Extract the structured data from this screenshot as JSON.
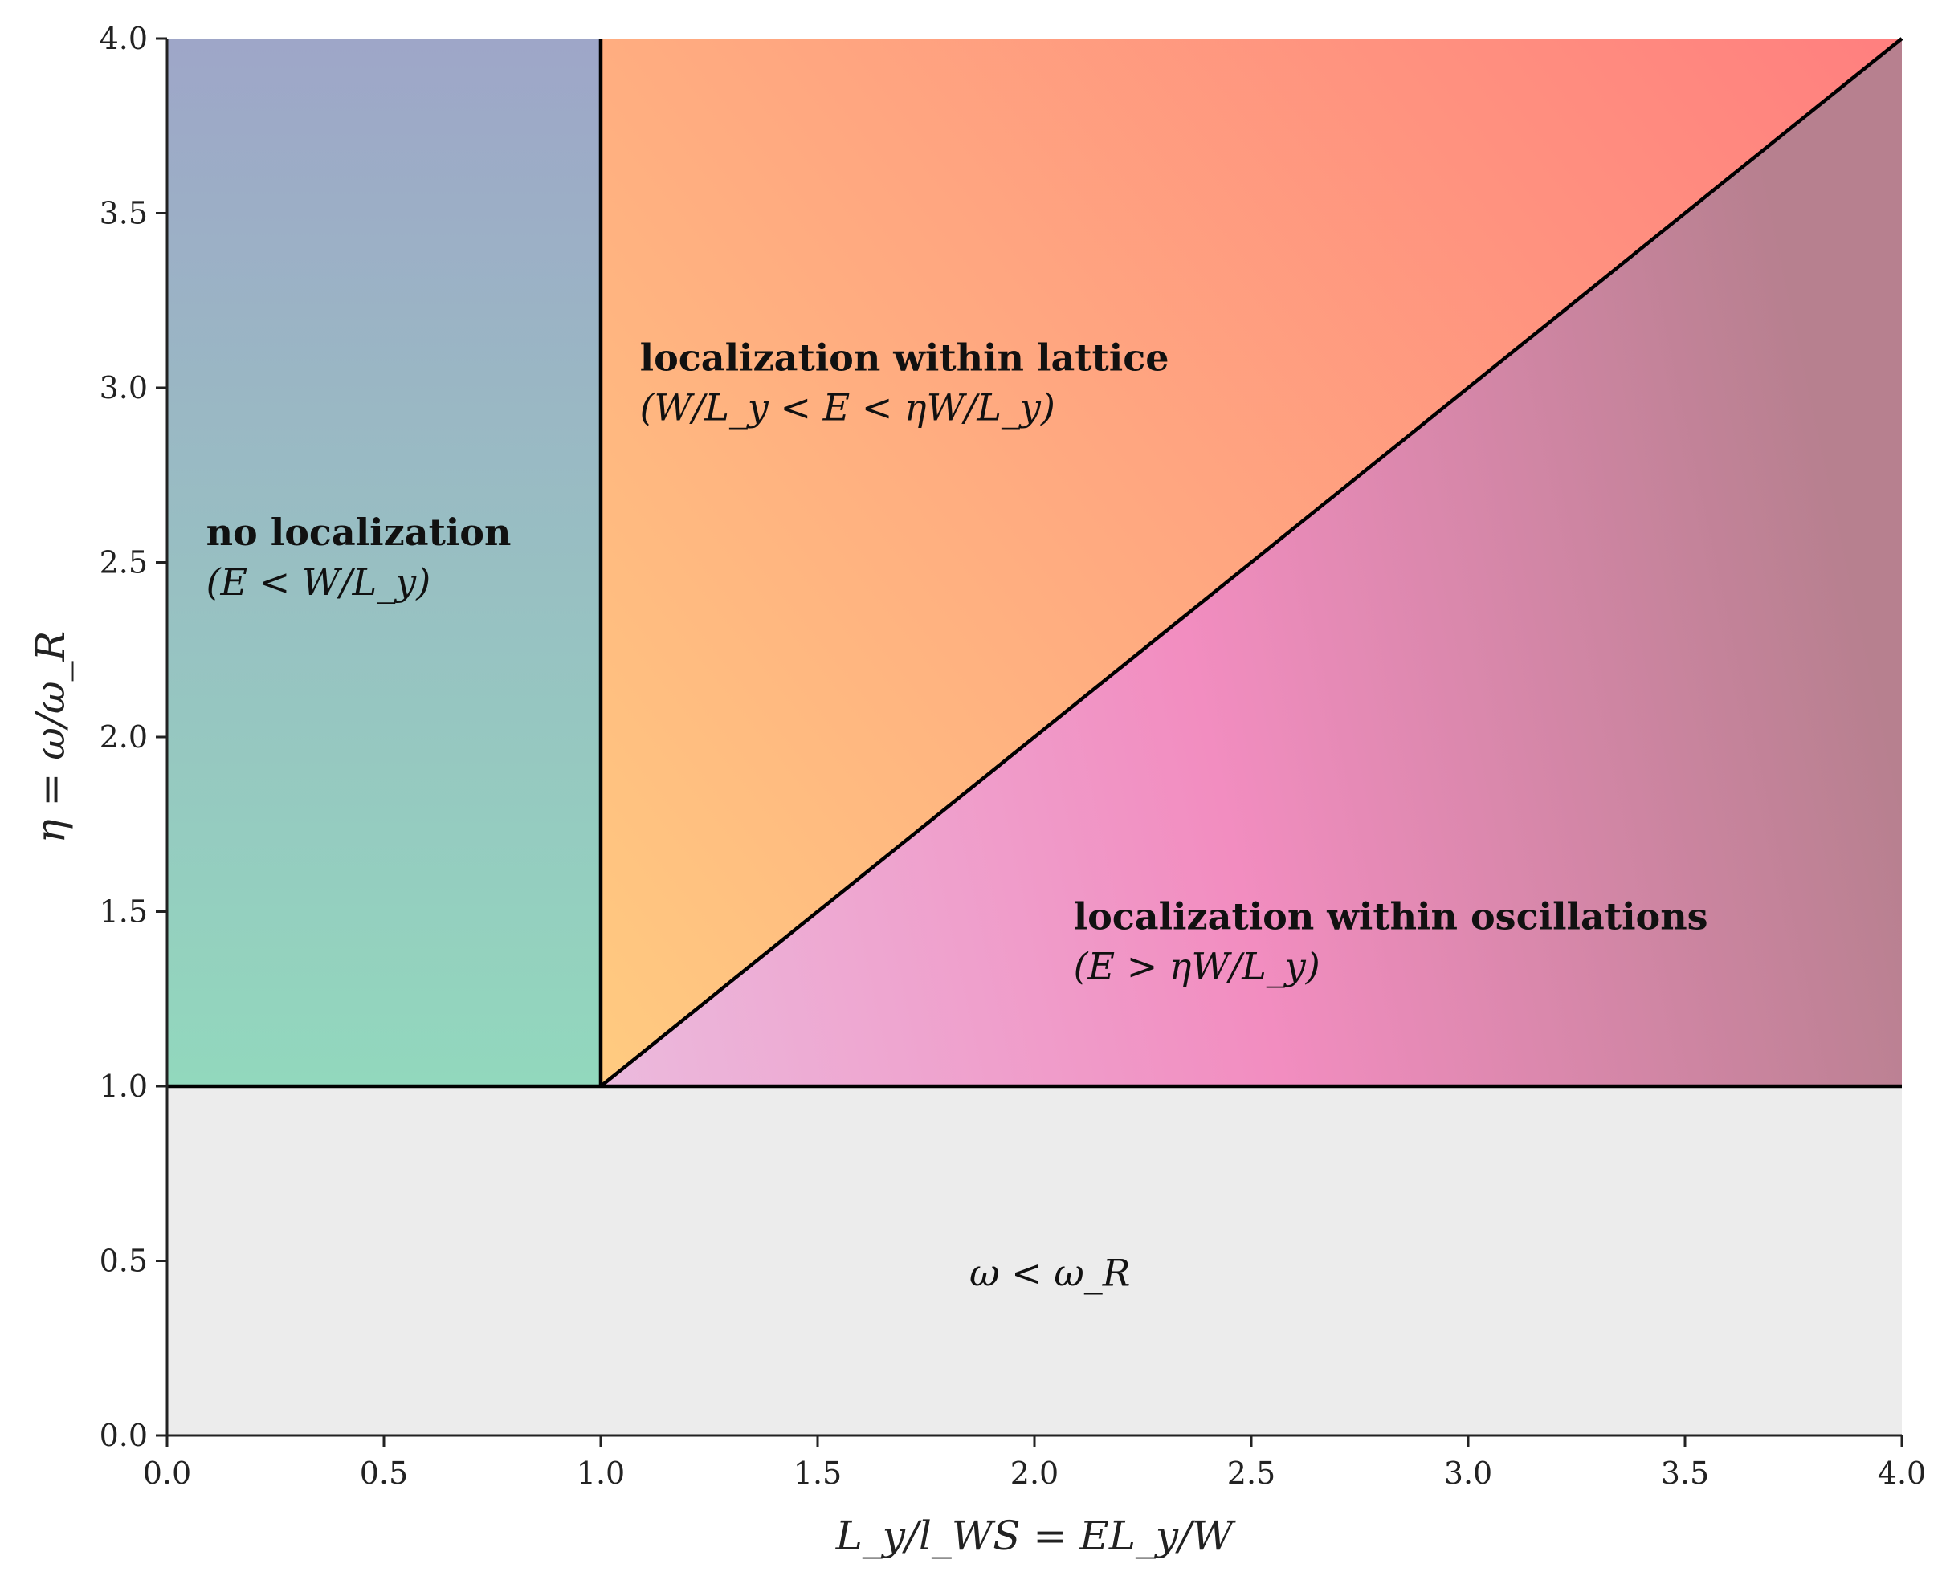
{
  "chart_data": {
    "type": "area",
    "title": "",
    "xlabel": "L_y/l_WS = EL_y/W",
    "ylabel": "η = ω/ω_R",
    "xlim": [
      0,
      4
    ],
    "ylim": [
      0,
      4
    ],
    "x_ticks": [
      0.0,
      0.5,
      1.0,
      1.5,
      2.0,
      2.5,
      3.0,
      3.5,
      4.0
    ],
    "y_ticks": [
      0.0,
      0.5,
      1.0,
      1.5,
      2.0,
      2.5,
      3.0,
      3.5,
      4.0
    ],
    "x_tick_labels": [
      "0.0",
      "0.5",
      "1.0",
      "1.5",
      "2.0",
      "2.5",
      "3.0",
      "3.5",
      "4.0"
    ],
    "y_tick_labels": [
      "0.0",
      "0.5",
      "1.0",
      "1.5",
      "2.0",
      "2.5",
      "3.0",
      "3.5",
      "4.0"
    ],
    "grid": false,
    "regions": [
      {
        "id": "below-resonance",
        "polygon": [
          [
            0,
            0
          ],
          [
            4,
            0
          ],
          [
            4,
            1
          ],
          [
            0,
            1
          ]
        ],
        "color": "#ececec"
      },
      {
        "id": "no-localization",
        "polygon": [
          [
            0,
            1
          ],
          [
            1,
            1
          ],
          [
            1,
            4
          ],
          [
            0,
            4
          ]
        ],
        "color_bottom": "#92d8bd",
        "color_top": "#9ea6c8"
      },
      {
        "id": "lattice",
        "polygon": [
          [
            1,
            1
          ],
          [
            4,
            4
          ],
          [
            1,
            4
          ]
        ],
        "color_low": "#ffcb80",
        "color_high": "#ff7f7f"
      },
      {
        "id": "oscillations",
        "polygon": [
          [
            1,
            1
          ],
          [
            4,
            1
          ],
          [
            4,
            4
          ]
        ],
        "color_low": "#ebbadd",
        "color_mid": "#f28dc0",
        "color_high": "#b7808f"
      }
    ],
    "boundaries": [
      {
        "id": "eta-one",
        "points": [
          [
            0,
            1
          ],
          [
            4,
            1
          ]
        ]
      },
      {
        "id": "ws-one",
        "points": [
          [
            1,
            1
          ],
          [
            1,
            4
          ]
        ]
      },
      {
        "id": "diagonal",
        "points": [
          [
            1,
            1
          ],
          [
            4,
            4
          ]
        ]
      }
    ],
    "annotations": [
      {
        "id": "no-loc",
        "title": "no localization",
        "condition": "(E < W/L_y)",
        "x": 0.09,
        "y": 2.55
      },
      {
        "id": "lattice",
        "title": "localization within lattice",
        "condition": "(W/L_y < E < ηW/L_y)",
        "x": 1.09,
        "y": 3.05
      },
      {
        "id": "oscillations",
        "title": "localization within oscillations",
        "condition": "(E > ηW/L_y)",
        "x": 2.09,
        "y": 1.45
      },
      {
        "id": "below",
        "title": "",
        "condition": "ω < ω_R",
        "x": 1.85,
        "y": 0.47
      }
    ]
  }
}
